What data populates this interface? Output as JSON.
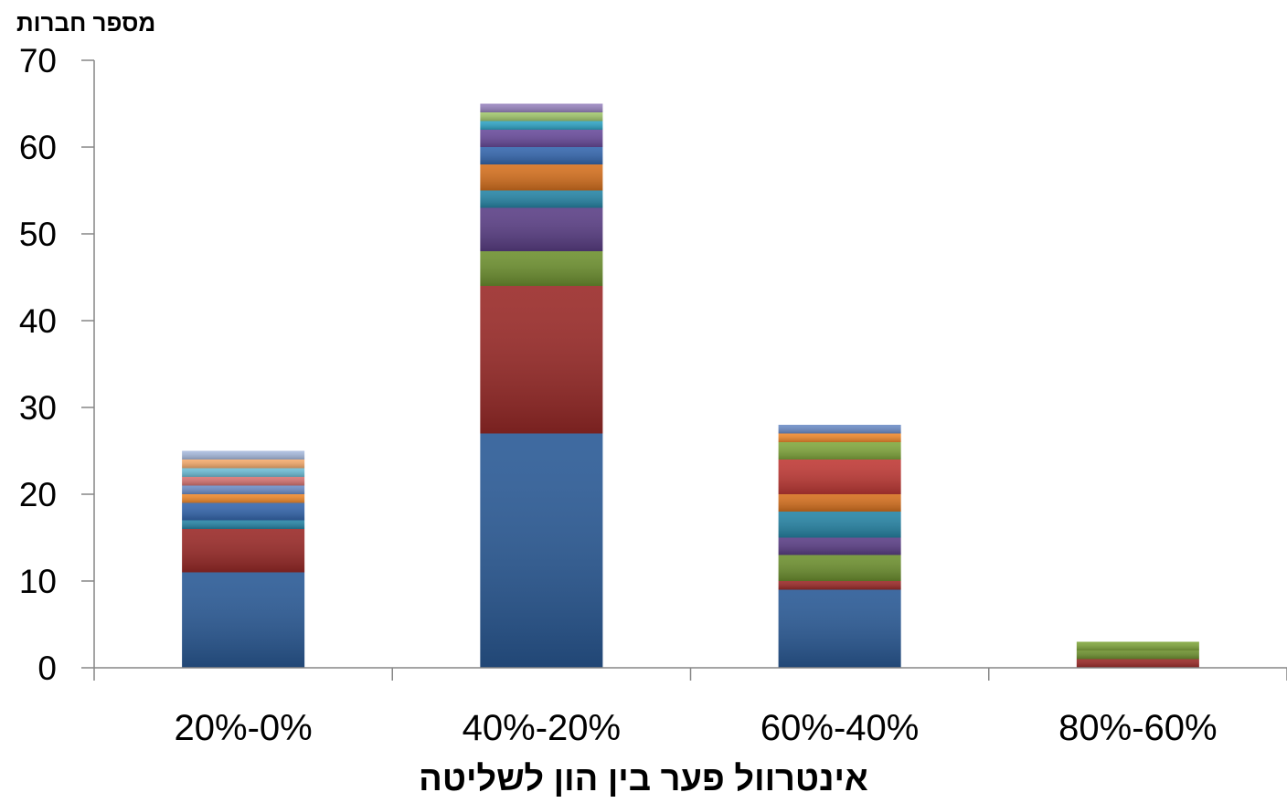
{
  "chart_data": {
    "type": "bar",
    "stacked": true,
    "ylabel": "מספר חברות",
    "xlabel": "אינטרוול פער בין הון לשליטה",
    "ylim": [
      0,
      70
    ],
    "yticks": [
      0,
      10,
      20,
      30,
      40,
      50,
      60,
      70
    ],
    "grid": false,
    "legend": "none",
    "categories": [
      "20%-0%",
      "40%-20%",
      "60%-40%",
      "80%-60%"
    ],
    "series": [
      {
        "color": "#2a5a96",
        "values": [
          11,
          27,
          9,
          0
        ]
      },
      {
        "color": "#9a2a28",
        "values": [
          5,
          17,
          1,
          1
        ]
      },
      {
        "color": "#6e9130",
        "values": [
          0,
          4,
          3,
          1
        ]
      },
      {
        "color": "#5b3f86",
        "values": [
          0,
          5,
          2,
          0
        ]
      },
      {
        "color": "#2785a6",
        "values": [
          1,
          2,
          3,
          0
        ]
      },
      {
        "color": "#d6711f",
        "values": [
          0,
          3,
          2,
          0
        ]
      },
      {
        "color": "#3567ae",
        "values": [
          2,
          2,
          0,
          0
        ]
      },
      {
        "color": "#c03a36",
        "values": [
          0,
          0,
          4,
          0
        ]
      },
      {
        "color": "#82a83e",
        "values": [
          0,
          0,
          2,
          1
        ]
      },
      {
        "color": "#6a4c9c",
        "values": [
          0,
          2,
          0,
          0
        ]
      },
      {
        "color": "#31a5c6",
        "values": [
          0,
          1,
          0,
          0
        ]
      },
      {
        "color": "#f08a2e",
        "values": [
          1,
          0,
          1,
          0
        ]
      },
      {
        "color": "#6e8ec8",
        "values": [
          1,
          0,
          1,
          0
        ]
      },
      {
        "color": "#d77573",
        "values": [
          1,
          0,
          0,
          0
        ]
      },
      {
        "color": "#a3c86f",
        "values": [
          0,
          1,
          0,
          0
        ]
      },
      {
        "color": "#9a86c0",
        "values": [
          0,
          1,
          0,
          0
        ]
      },
      {
        "color": "#6fbfd8",
        "values": [
          1,
          0,
          0,
          0
        ]
      },
      {
        "color": "#f6ac6e",
        "values": [
          1,
          0,
          0,
          0
        ]
      },
      {
        "color": "#a9bcdf",
        "values": [
          1,
          0,
          0,
          0
        ]
      }
    ]
  }
}
